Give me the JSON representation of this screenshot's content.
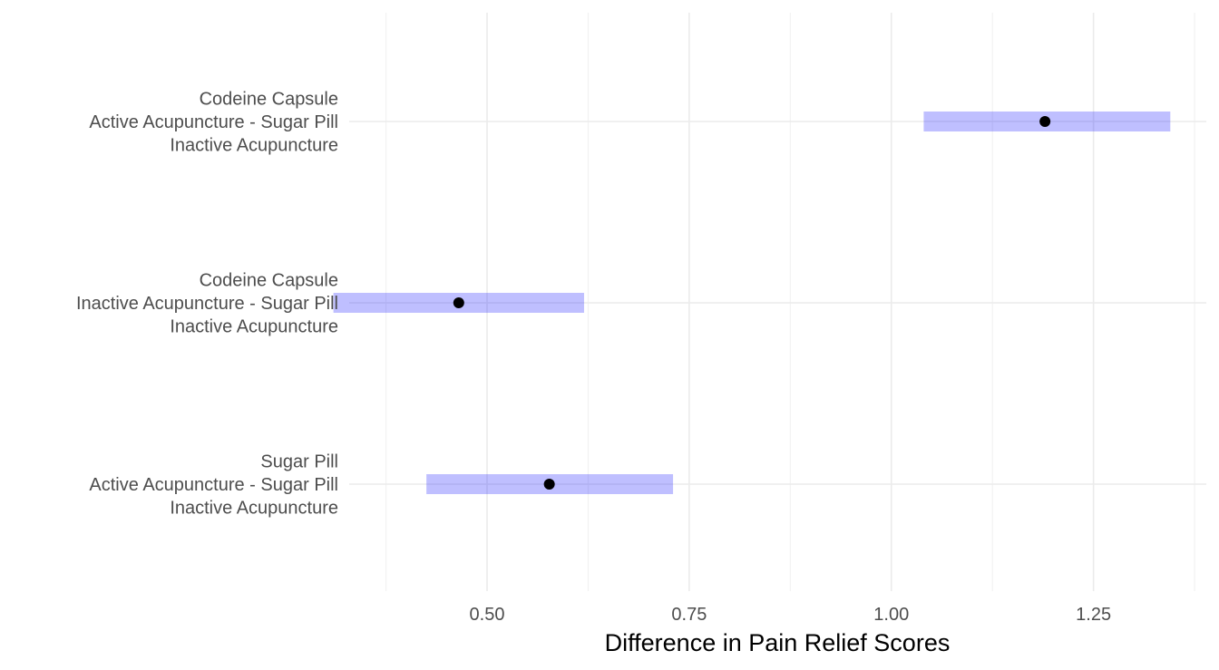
{
  "chart_data": {
    "type": "interval",
    "xlabel": "Difference in Pain Relief Scores",
    "ylabel": "",
    "xlim": [
      0.3295,
      1.3895
    ],
    "x_ticks": [
      0.5,
      0.75,
      1.0,
      1.25
    ],
    "x_tick_labels": [
      "0.50",
      "0.75",
      "1.00",
      "1.25"
    ],
    "x_minor_ticks": [
      0.375,
      0.625,
      0.875,
      1.125,
      1.375
    ],
    "grid": true,
    "legend": "none",
    "colors": {
      "interval": "#0000ff",
      "interval_alpha": 0.25,
      "point": "#000000"
    },
    "comparisons": [
      {
        "label": [
          "Codeine Capsule",
          "Active Acupuncture - Sugar Pill",
          "Inactive Acupuncture"
        ],
        "estimate": 1.19,
        "lower": 1.04,
        "upper": 1.345
      },
      {
        "label": [
          "Codeine Capsule",
          "Inactive Acupuncture - Sugar Pill",
          "Inactive Acupuncture"
        ],
        "estimate": 0.465,
        "lower": 0.31,
        "upper": 0.62
      },
      {
        "label": [
          "Sugar Pill",
          "Active Acupuncture - Sugar Pill",
          "Inactive Acupuncture"
        ],
        "estimate": 0.577,
        "lower": 0.425,
        "upper": 0.73
      }
    ]
  }
}
